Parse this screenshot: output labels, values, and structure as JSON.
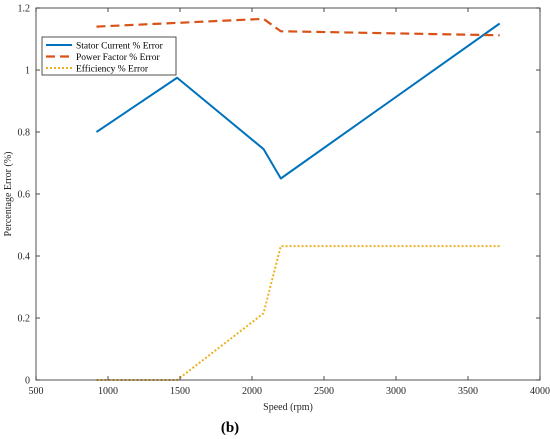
{
  "chart_data": {
    "type": "line",
    "xlabel": "Speed (rpm)",
    "ylabel": "Percentage Error (%)",
    "xlim": [
      500,
      4000
    ],
    "ylim": [
      0,
      1.2
    ],
    "xticks": [
      500,
      1000,
      1500,
      2000,
      2500,
      3000,
      3500,
      4000
    ],
    "yticks": [
      0,
      0.2,
      0.4,
      0.6,
      0.8,
      1,
      1.2
    ],
    "ytick_labels": [
      "0",
      "0.2",
      "0.4",
      "0.6",
      "0.8",
      "1",
      "1.2"
    ],
    "grid": false,
    "legend_position": "top-left",
    "series": [
      {
        "name": "Stator Current % Error",
        "color": "#0072BD",
        "style": "solid",
        "points": [
          [
            920,
            0.8
          ],
          [
            1480,
            0.975
          ],
          [
            2080,
            0.745
          ],
          [
            2200,
            0.65
          ],
          [
            3720,
            1.15
          ]
        ]
      },
      {
        "name": "Power Factor % Error",
        "color": "#D95319",
        "style": "dashed",
        "points": [
          [
            920,
            1.14
          ],
          [
            1480,
            1.152
          ],
          [
            2080,
            1.165
          ],
          [
            2200,
            1.125
          ],
          [
            3720,
            1.112
          ]
        ]
      },
      {
        "name": "Efficiency % Error",
        "color": "#EDB120",
        "style": "dotted",
        "points": [
          [
            920,
            0.0
          ],
          [
            1480,
            0.0
          ],
          [
            2080,
            0.215
          ],
          [
            2200,
            0.432
          ],
          [
            3720,
            0.432
          ]
        ]
      }
    ]
  },
  "caption": "(b)"
}
